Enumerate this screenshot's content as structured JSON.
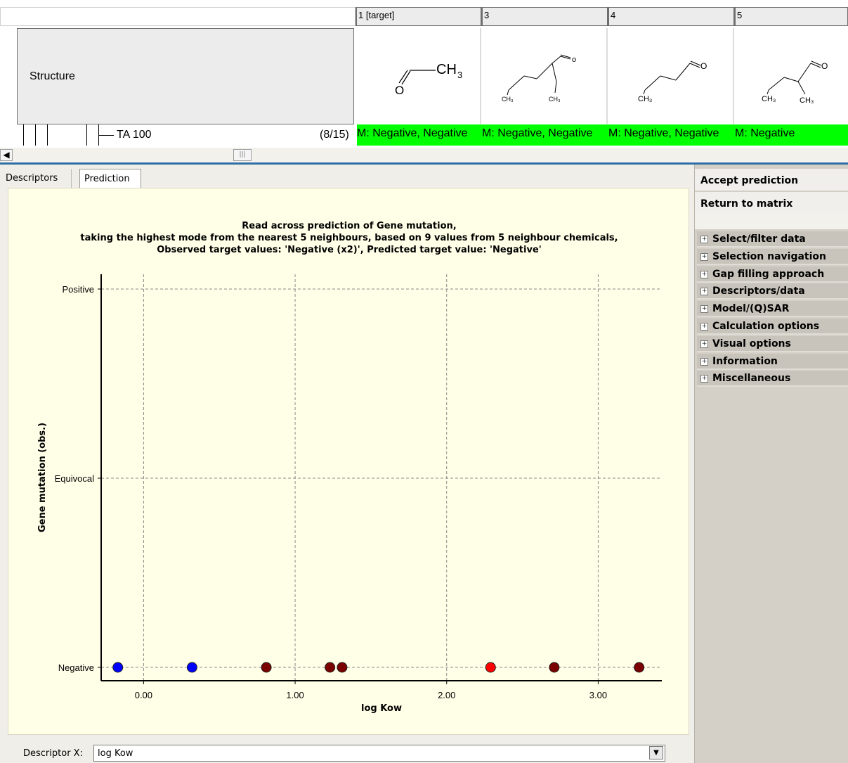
{
  "matrix": {
    "columns": [
      {
        "header": "1 [target]",
        "result": "M: Negative, Negative",
        "chem": {
          "ch3_label": "CH",
          "sub": "3",
          "o": "O"
        }
      },
      {
        "header": "3",
        "result": "M: Negative, Negative",
        "chem": {
          "l1": "CH₃",
          "l2": "CH₃"
        }
      },
      {
        "header": "4",
        "result": "M: Negative, Negative",
        "chem": {
          "l1": "CH₃",
          "o": "O"
        }
      },
      {
        "header": "5",
        "result": "M: Negative",
        "chem": {
          "l1": "CH₃",
          "l2": "CH₃",
          "o": "O"
        }
      }
    ],
    "structure_label": "Structure",
    "endpoint_label": "TA 100",
    "endpoint_count": "(8/15)"
  },
  "tabs": [
    "Descriptors",
    "Prediction"
  ],
  "active_tab": "Prediction",
  "chart_data": {
    "type": "scatter",
    "title_lines": [
      "Read across prediction of Gene mutation,",
      "taking the highest mode from the nearest 5 neighbours, based on 9 values from 5 neighbour chemicals,",
      "Observed target values: 'Negative (x2)', Predicted target value: 'Negative'"
    ],
    "xlabel": "log Kow",
    "ylabel": "Gene mutation (obs.)",
    "y_categories": [
      "Negative",
      "Equivocal",
      "Positive"
    ],
    "x_ticks": [
      0,
      1,
      2,
      3
    ],
    "x_tick_labels": [
      "0.00",
      "1.00",
      "2.00",
      "3.00"
    ],
    "xlim": [
      -0.28,
      3.42
    ],
    "grid": true,
    "colors": {
      "target": "#0000ff",
      "neighbour": "#7a0000",
      "prediction": "#ff0000"
    },
    "points": [
      {
        "x": -0.17,
        "y": "Negative",
        "kind": "target"
      },
      {
        "x": 0.32,
        "y": "Negative",
        "kind": "target"
      },
      {
        "x": 0.81,
        "y": "Negative",
        "kind": "neighbour"
      },
      {
        "x": 1.23,
        "y": "Negative",
        "kind": "neighbour"
      },
      {
        "x": 1.31,
        "y": "Negative",
        "kind": "neighbour"
      },
      {
        "x": 2.29,
        "y": "Negative",
        "kind": "prediction"
      },
      {
        "x": 2.71,
        "y": "Negative",
        "kind": "neighbour"
      },
      {
        "x": 3.27,
        "y": "Negative",
        "kind": "neighbour"
      }
    ]
  },
  "descriptor_x": {
    "label": "Descriptor X:",
    "value": "log Kow"
  },
  "right_panel": {
    "actions": [
      "Accept prediction",
      "Return to matrix"
    ],
    "sections": [
      "Select/filter data",
      "Selection navigation",
      "Gap filling approach",
      "Descriptors/data",
      "Model/(Q)SAR",
      "Calculation options",
      "Visual options",
      "Information",
      "Miscellaneous"
    ]
  }
}
